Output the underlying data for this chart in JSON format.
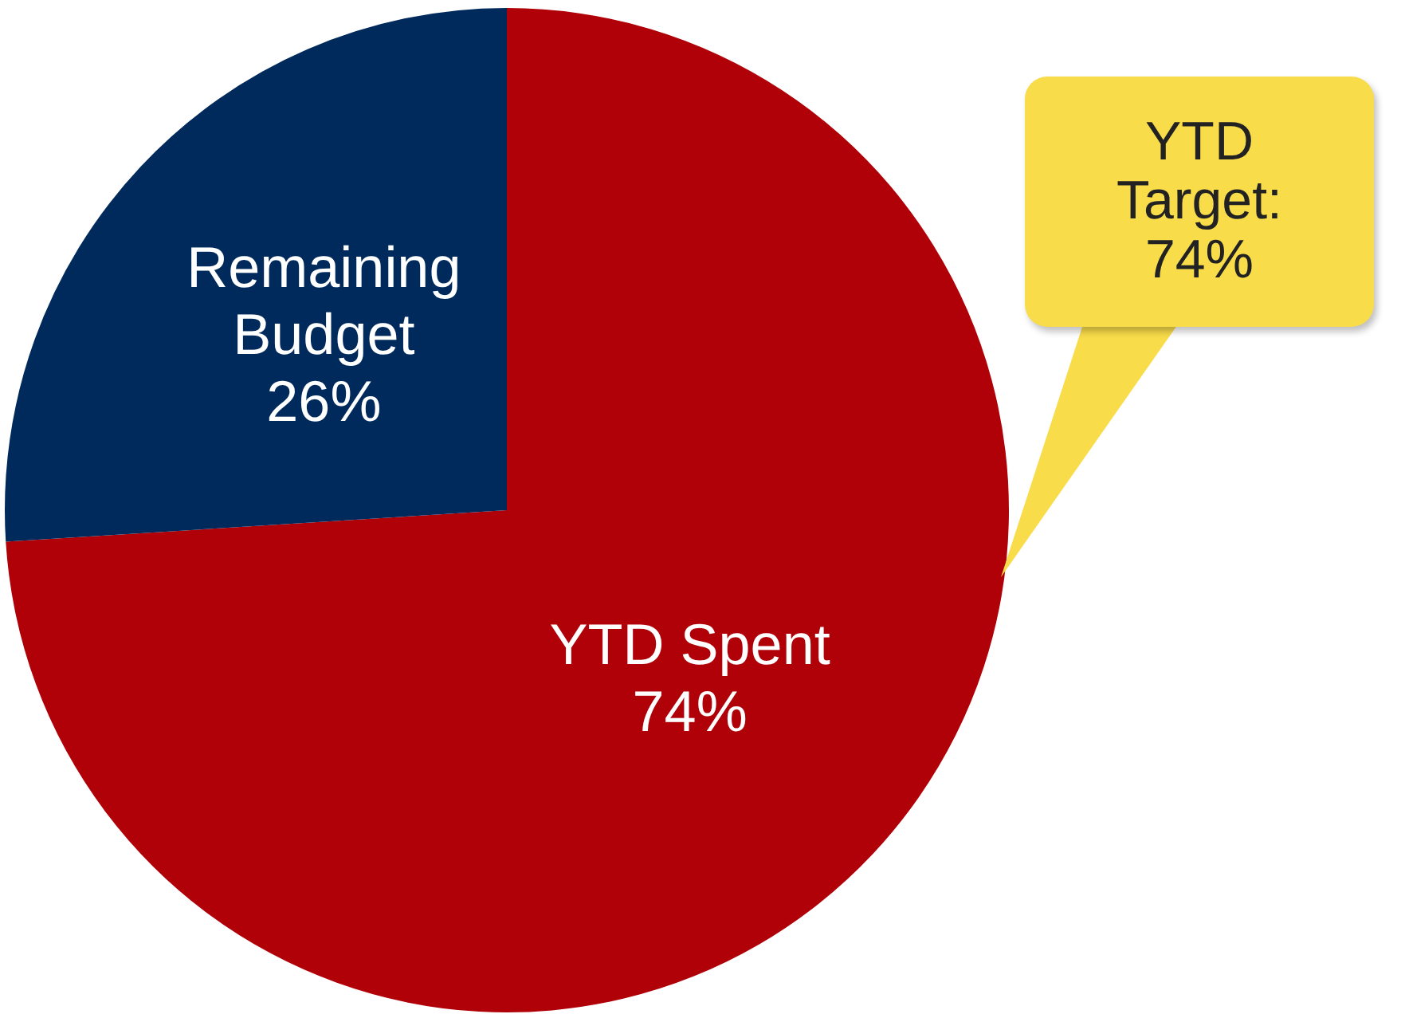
{
  "chart_data": {
    "type": "pie",
    "categories": [
      "YTD Spent",
      "Remaining Budget"
    ],
    "values": [
      74,
      26
    ],
    "colors": [
      "#b00008",
      "#002a5c"
    ],
    "value_labels": [
      "74%",
      "26%"
    ],
    "legend": false,
    "annotations": [
      "YTD Target: 74%"
    ]
  }
}
